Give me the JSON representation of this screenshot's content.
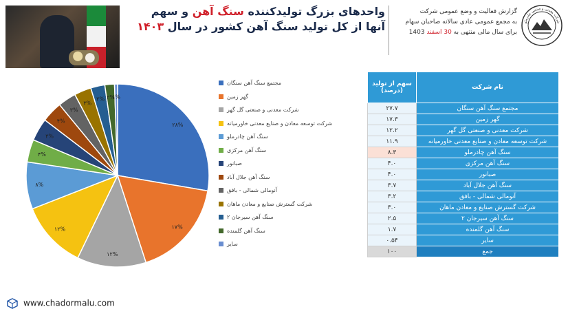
{
  "header": {
    "title_prefix": "واحدهای بزرگ تولیدکننده ",
    "title_accent": "سنگ آهن",
    "title_suffix": " و سهم",
    "subtitle_prefix": "آنها از کل تولید سنگ آهن کشور در سال ",
    "subtitle_year": "۱۴۰۳",
    "report_line1": "گزارش فعالیت و وضع عمومی شرکت",
    "report_line2": "به مجمع عمومی عادی سالانه صاحبان سهام",
    "report_line3_prefix": "برای سال مالی منتهی به ",
    "report_line3_accent": "30 اسفند",
    "report_line3_suffix": " 1403",
    "logo_text": "شرکت معدنی و صنعتی چادرملو"
  },
  "colors": {
    "title": "#1a2a4a",
    "accent": "#d0202a",
    "table_header": "#2f9ad6"
  },
  "chart_data": {
    "type": "pie",
    "categories": [
      "مجتمع سنگ آهن سنگان",
      "گهر زمین",
      "شرکت معدنی و صنعتی گل گهر",
      "شرکت توسعه معادن و صنایع معدنی خاورمیانه",
      "سنگ آهن چادرملو",
      "سنگ آهن مرکزی",
      "صبانور",
      "سنگ آهن جلال آباد",
      "آنومالی شمالی - بافق",
      "شرکت گسترش صنایع و معادن ماهان",
      "سنگ آهن سیرجان ۲",
      "سنگ آهن گلمنده",
      "سایر"
    ],
    "values": [
      27.7,
      17.3,
      12.2,
      11.9,
      8.3,
      4.0,
      4.0,
      3.7,
      3.2,
      3.0,
      2.5,
      1.7,
      0.54
    ],
    "slice_labels": [
      "۲۸%",
      "۱۷%",
      "۱۲%",
      "۱۲%",
      "۸%",
      "۴%",
      "۴%",
      "۴%",
      "۳%",
      "۳%",
      "۳%",
      "۲%",
      "۱%"
    ],
    "colors": [
      "#3a6fbd",
      "#e8742c",
      "#a5a5a5",
      "#f5c211",
      "#5b9bd5",
      "#70ad47",
      "#264478",
      "#9e480e",
      "#636363",
      "#997300",
      "#255e91",
      "#43682b",
      "#698ed0"
    ]
  },
  "table": {
    "header_name": "نام شرکت",
    "header_share_l1": "سهم از تولید",
    "header_share_l2": "(درصد)",
    "rows": [
      {
        "name": "مجتمع سنگ آهن سنگان",
        "value": "۲۷.۷"
      },
      {
        "name": "گهر زمین",
        "value": "۱۷.۳"
      },
      {
        "name": "شرکت معدنی و صنعتی گل گهر",
        "value": "۱۲.۲"
      },
      {
        "name": "شرکت توسعه معادن و صنایع معدنی خاورمیانه",
        "value": "۱۱.۹"
      },
      {
        "name": "سنگ آهن چادرملو",
        "value": "۸.۳"
      },
      {
        "name": "سنگ آهن مرکزی",
        "value": "۴.۰"
      },
      {
        "name": "صبانور",
        "value": "۴.۰"
      },
      {
        "name": "سنگ آهن جلال آباد",
        "value": "۳.۷"
      },
      {
        "name": "آنومالی شمالی - بافق",
        "value": "۳.۲"
      },
      {
        "name": "شرکت گسترش صنایع و معادن ماهان",
        "value": "۳.۰"
      },
      {
        "name": "سنگ آهن سیرجان ۲",
        "value": "۲.۵"
      },
      {
        "name": "سنگ آهن گلمنده",
        "value": "۱.۷"
      },
      {
        "name": "سایر",
        "value": "۰.۵۴"
      },
      {
        "name": "جمع",
        "value": "۱۰۰"
      }
    ]
  },
  "footer": {
    "url": "www.chadormalu.com"
  }
}
